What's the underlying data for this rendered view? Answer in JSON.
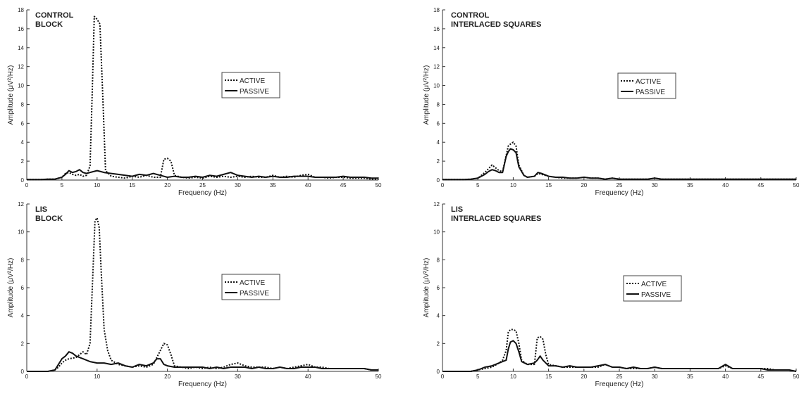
{
  "chart_data": [
    {
      "type": "line",
      "title_lines": [
        "CONTROL",
        "BLOCK"
      ],
      "xlabel": "Frequency (Hz)",
      "ylabel": "Amplitude  (μV²/Hz)",
      "xlim": [
        0,
        50
      ],
      "ylim": [
        0,
        18
      ],
      "xticks": [
        0,
        5,
        10,
        15,
        20,
        25,
        30,
        35,
        40,
        45,
        50
      ],
      "yticks": [
        0,
        2,
        4,
        6,
        8,
        10,
        12,
        14,
        16,
        18
      ],
      "legend": [
        "ACTIVE",
        "PASSIVE"
      ],
      "series": [
        {
          "name": "ACTIVE",
          "style": "dotted",
          "x": [
            0,
            1,
            2,
            3,
            4,
            5,
            5.5,
            6,
            6.5,
            7,
            7.5,
            8,
            8.5,
            9,
            9.3,
            9.6,
            10,
            10.4,
            10.8,
            11.2,
            12,
            13,
            14,
            15,
            16,
            17,
            18,
            19,
            19.5,
            20,
            20.5,
            21,
            22,
            23,
            24,
            25,
            26,
            27,
            28,
            29,
            30,
            31,
            32,
            33,
            34,
            35,
            36,
            37,
            38,
            39,
            40,
            41,
            42,
            43,
            44,
            45,
            46,
            47,
            48,
            49,
            50
          ],
          "y": [
            0.05,
            0.05,
            0.05,
            0.1,
            0.1,
            0.3,
            0.7,
            0.8,
            0.6,
            0.5,
            0.6,
            0.4,
            0.5,
            1.5,
            9,
            17.3,
            17,
            16.5,
            9,
            1,
            0.4,
            0.3,
            0.2,
            0.4,
            0.3,
            0.5,
            0.3,
            0.3,
            2.2,
            2.3,
            2,
            0.5,
            0.3,
            0.2,
            0.3,
            0.2,
            0.4,
            0.3,
            0.4,
            0.3,
            0.4,
            0.3,
            0.4,
            0.3,
            0.3,
            0.5,
            0.3,
            0.4,
            0.3,
            0.5,
            0.6,
            0.3,
            0.3,
            0.2,
            0.3,
            0.3,
            0.2,
            0.2,
            0.2,
            0.1,
            0.1
          ]
        },
        {
          "name": "PASSIVE",
          "style": "solid",
          "x": [
            0,
            1,
            2,
            3,
            4,
            5,
            5.5,
            6,
            6.5,
            7,
            7.5,
            8,
            8.5,
            9,
            9.5,
            10,
            10.5,
            11,
            12,
            13,
            14,
            15,
            16,
            17,
            18,
            19,
            20,
            21,
            22,
            23,
            24,
            25,
            26,
            27,
            28,
            29,
            30,
            31,
            32,
            33,
            34,
            35,
            36,
            37,
            38,
            39,
            40,
            41,
            42,
            43,
            44,
            45,
            46,
            47,
            48,
            49,
            50
          ],
          "y": [
            0.05,
            0.05,
            0.05,
            0.1,
            0.1,
            0.3,
            0.6,
            1,
            0.8,
            0.9,
            1.1,
            0.8,
            0.7,
            0.8,
            0.9,
            1,
            0.9,
            0.8,
            0.7,
            0.6,
            0.5,
            0.4,
            0.6,
            0.5,
            0.7,
            0.5,
            0.3,
            0.4,
            0.3,
            0.3,
            0.4,
            0.3,
            0.5,
            0.4,
            0.6,
            0.8,
            0.5,
            0.4,
            0.3,
            0.4,
            0.3,
            0.4,
            0.3,
            0.3,
            0.4,
            0.4,
            0.4,
            0.3,
            0.3,
            0.3,
            0.3,
            0.4,
            0.3,
            0.3,
            0.3,
            0.2,
            0.2
          ]
        }
      ]
    },
    {
      "type": "line",
      "title_lines": [
        "CONTROL",
        "INTERLACED SQUARES"
      ],
      "xlabel": "Frequency (Hz)",
      "ylabel": "Amplitude  (μV²/Hz)",
      "xlim": [
        0,
        50
      ],
      "ylim": [
        0,
        18
      ],
      "xticks": [
        0,
        5,
        10,
        15,
        20,
        25,
        30,
        35,
        40,
        45,
        50
      ],
      "yticks": [
        0,
        2,
        4,
        6,
        8,
        10,
        12,
        14,
        16,
        18
      ],
      "legend": [
        "ACTIVE",
        "PASSIVE"
      ],
      "series": [
        {
          "name": "ACTIVE",
          "style": "dotted",
          "x": [
            0,
            1,
            2,
            3,
            4,
            5,
            5.5,
            6,
            6.5,
            7,
            7.5,
            8,
            8.5,
            9,
            9.3,
            9.6,
            10,
            10.4,
            10.8,
            11.5,
            12,
            13,
            13.5,
            14,
            15,
            16,
            17,
            18,
            19,
            20,
            21,
            22,
            23,
            24,
            25,
            26,
            27,
            28,
            29,
            30,
            31,
            32,
            33,
            34,
            35,
            36,
            37,
            38,
            39,
            40,
            41,
            42,
            43,
            44,
            45,
            46,
            47,
            48,
            49,
            50
          ],
          "y": [
            0.05,
            0.05,
            0.05,
            0.05,
            0.1,
            0.2,
            0.5,
            0.8,
            1.2,
            1.6,
            1.3,
            1,
            0.9,
            2.6,
            3.6,
            3.8,
            4,
            3.6,
            1.6,
            0.5,
            0.3,
            0.4,
            0.7,
            0.6,
            0.4,
            0.3,
            0.2,
            0.2,
            0.2,
            0.3,
            0.2,
            0.2,
            0.1,
            0.2,
            0.1,
            0.1,
            0.1,
            0.1,
            0.1,
            0.2,
            0.1,
            0.1,
            0.1,
            0.1,
            0.1,
            0.1,
            0.1,
            0.1,
            0.1,
            0.1,
            0.1,
            0.1,
            0.1,
            0.1,
            0.1,
            0.1,
            0.1,
            0.1,
            0.1,
            0.1
          ]
        },
        {
          "name": "PASSIVE",
          "style": "solid",
          "x": [
            0,
            1,
            2,
            3,
            4,
            5,
            5.5,
            6,
            6.5,
            7,
            7.5,
            8,
            8.5,
            9,
            9.3,
            9.6,
            10,
            10.4,
            10.8,
            11.5,
            12,
            13,
            13.5,
            14,
            15,
            16,
            17,
            18,
            19,
            20,
            21,
            22,
            23,
            24,
            25,
            26,
            27,
            28,
            29,
            30,
            31,
            32,
            33,
            34,
            35,
            36,
            37,
            38,
            39,
            40,
            41,
            42,
            43,
            44,
            45,
            46,
            47,
            48,
            49,
            50
          ],
          "y": [
            0.05,
            0.05,
            0.05,
            0.05,
            0.1,
            0.2,
            0.4,
            0.6,
            0.9,
            1.1,
            1,
            0.8,
            0.8,
            2.5,
            3,
            3.3,
            3.2,
            2.9,
            1.4,
            0.5,
            0.3,
            0.4,
            0.8,
            0.7,
            0.4,
            0.3,
            0.3,
            0.2,
            0.2,
            0.3,
            0.2,
            0.2,
            0.1,
            0.2,
            0.1,
            0.1,
            0.1,
            0.1,
            0.1,
            0.2,
            0.1,
            0.1,
            0.1,
            0.1,
            0.1,
            0.1,
            0.1,
            0.1,
            0.1,
            0.1,
            0.1,
            0.1,
            0.1,
            0.1,
            0.1,
            0.1,
            0.1,
            0.1,
            0.1,
            0.1
          ]
        }
      ]
    },
    {
      "type": "line",
      "title_lines": [
        "LIS",
        "BLOCK"
      ],
      "xlabel": "Frequency (Hz)",
      "ylabel": "Amplitude  (μV²/Hz)",
      "xlim": [
        0,
        50
      ],
      "ylim": [
        0,
        12
      ],
      "xticks": [
        0,
        10,
        20,
        30,
        40,
        50
      ],
      "yticks": [
        0,
        2,
        4,
        6,
        8,
        10,
        12
      ],
      "legend": [
        "ACTIVE",
        "PASSIVE"
      ],
      "series": [
        {
          "name": "ACTIVE",
          "style": "dotted",
          "x": [
            0,
            1,
            2,
            3,
            4,
            4.5,
            5,
            5.5,
            6,
            7,
            8,
            8.5,
            9,
            9.4,
            9.7,
            10,
            10.3,
            10.6,
            11,
            11.5,
            12,
            13,
            14,
            15,
            16,
            17,
            18,
            19,
            19.5,
            20,
            20.5,
            21,
            22,
            23,
            24,
            25,
            26,
            27,
            28,
            29,
            30,
            31,
            32,
            33,
            34,
            35,
            36,
            37,
            38,
            39,
            40,
            41,
            42,
            43,
            44,
            45,
            46,
            47,
            48,
            49,
            50
          ],
          "y": [
            0,
            0,
            0,
            0,
            0.1,
            0.3,
            0.6,
            0.8,
            0.9,
            1,
            1.4,
            1.2,
            2,
            7,
            10.8,
            11,
            10.3,
            7,
            3,
            1.5,
            0.8,
            0.5,
            0.4,
            0.3,
            0.4,
            0.3,
            0.5,
            1.5,
            2,
            1.9,
            1.2,
            0.4,
            0.3,
            0.2,
            0.3,
            0.2,
            0.3,
            0.2,
            0.3,
            0.5,
            0.6,
            0.4,
            0.3,
            0.3,
            0.3,
            0.2,
            0.3,
            0.2,
            0.3,
            0.4,
            0.5,
            0.3,
            0.3,
            0.2,
            0.2,
            0.2,
            0.2,
            0.2,
            0.2,
            0.1,
            0.1
          ]
        },
        {
          "name": "PASSIVE",
          "style": "solid",
          "x": [
            0,
            1,
            2,
            3,
            4,
            4.5,
            5,
            5.5,
            6,
            6.5,
            7,
            8,
            9,
            10,
            11,
            12,
            13,
            14,
            15,
            16,
            17,
            18,
            18.5,
            19,
            19.5,
            20,
            21,
            22,
            23,
            24,
            25,
            26,
            27,
            28,
            29,
            30,
            31,
            32,
            33,
            34,
            35,
            36,
            37,
            38,
            39,
            40,
            41,
            42,
            43,
            44,
            45,
            46,
            47,
            48,
            49,
            50
          ],
          "y": [
            0,
            0,
            0,
            0,
            0.1,
            0.5,
            0.9,
            1.1,
            1.4,
            1.3,
            1.1,
            0.9,
            0.7,
            0.6,
            0.6,
            0.5,
            0.6,
            0.4,
            0.3,
            0.5,
            0.4,
            0.6,
            0.9,
            0.9,
            0.5,
            0.4,
            0.3,
            0.3,
            0.3,
            0.3,
            0.3,
            0.2,
            0.3,
            0.2,
            0.3,
            0.3,
            0.3,
            0.2,
            0.3,
            0.2,
            0.2,
            0.3,
            0.2,
            0.2,
            0.3,
            0.3,
            0.3,
            0.2,
            0.2,
            0.2,
            0.2,
            0.2,
            0.2,
            0.2,
            0.1,
            0.1
          ]
        }
      ]
    },
    {
      "type": "line",
      "title_lines": [
        "LIS",
        "INTERLACED SQUARES"
      ],
      "xlabel": "Frequency (Hz)",
      "ylabel": "Amplitude  (μV²/Hz)",
      "xlim": [
        0,
        50
      ],
      "ylim": [
        0,
        12
      ],
      "xticks": [
        0,
        5,
        10,
        15,
        20,
        25,
        30,
        35,
        40,
        45,
        50
      ],
      "yticks": [
        0,
        2,
        4,
        6,
        8,
        10,
        12
      ],
      "legend": [
        "ACTIVE",
        "PASSIVE"
      ],
      "series": [
        {
          "name": "ACTIVE",
          "style": "dotted",
          "x": [
            0,
            1,
            2,
            3,
            4,
            5,
            6,
            7,
            8,
            8.5,
            9,
            9.3,
            9.6,
            10,
            10.4,
            10.8,
            11.2,
            12,
            13,
            13.4,
            13.8,
            14.2,
            14.6,
            15,
            16,
            17,
            18,
            19,
            20,
            21,
            22,
            23,
            24,
            25,
            26,
            27,
            28,
            29,
            30,
            31,
            32,
            33,
            34,
            35,
            36,
            37,
            38,
            39,
            40,
            41,
            42,
            43,
            44,
            45,
            46,
            47,
            48,
            49,
            50
          ],
          "y": [
            0,
            0,
            0,
            0,
            0,
            0.1,
            0.2,
            0.3,
            0.6,
            0.8,
            1.5,
            2.8,
            3,
            3,
            2.9,
            2,
            0.8,
            0.5,
            0.5,
            2.4,
            2.5,
            2.3,
            1.2,
            0.5,
            0.4,
            0.3,
            0.3,
            0.3,
            0.3,
            0.3,
            0.3,
            0.5,
            0.3,
            0.3,
            0.2,
            0.2,
            0.2,
            0.2,
            0.3,
            0.2,
            0.2,
            0.2,
            0.2,
            0.2,
            0.2,
            0.2,
            0.2,
            0.2,
            0.4,
            0.2,
            0.2,
            0.2,
            0.2,
            0.2,
            0.2,
            0.1,
            0.1,
            0.1,
            0
          ]
        },
        {
          "name": "PASSIVE",
          "style": "solid",
          "x": [
            0,
            1,
            2,
            3,
            4,
            5,
            6,
            7,
            8,
            8.5,
            9,
            9.3,
            9.6,
            10,
            10.4,
            10.8,
            11.2,
            12,
            13,
            13.4,
            13.8,
            14.2,
            14.6,
            15,
            16,
            17,
            18,
            19,
            20,
            21,
            22,
            23,
            24,
            25,
            26,
            27,
            28,
            29,
            30,
            31,
            32,
            33,
            34,
            35,
            36,
            37,
            38,
            39,
            40,
            41,
            42,
            43,
            44,
            45,
            46,
            47,
            48,
            49,
            50
          ],
          "y": [
            0,
            0,
            0,
            0,
            0,
            0.1,
            0.3,
            0.4,
            0.6,
            0.7,
            0.8,
            1.6,
            2.1,
            2.2,
            2,
            1.4,
            0.7,
            0.5,
            0.6,
            0.8,
            1.1,
            0.8,
            0.6,
            0.4,
            0.4,
            0.3,
            0.4,
            0.3,
            0.3,
            0.3,
            0.4,
            0.5,
            0.3,
            0.3,
            0.2,
            0.3,
            0.2,
            0.2,
            0.3,
            0.2,
            0.2,
            0.2,
            0.2,
            0.2,
            0.2,
            0.2,
            0.2,
            0.2,
            0.5,
            0.2,
            0.2,
            0.2,
            0.2,
            0.2,
            0.1,
            0.1,
            0.1,
            0.1,
            0
          ]
        }
      ]
    }
  ]
}
